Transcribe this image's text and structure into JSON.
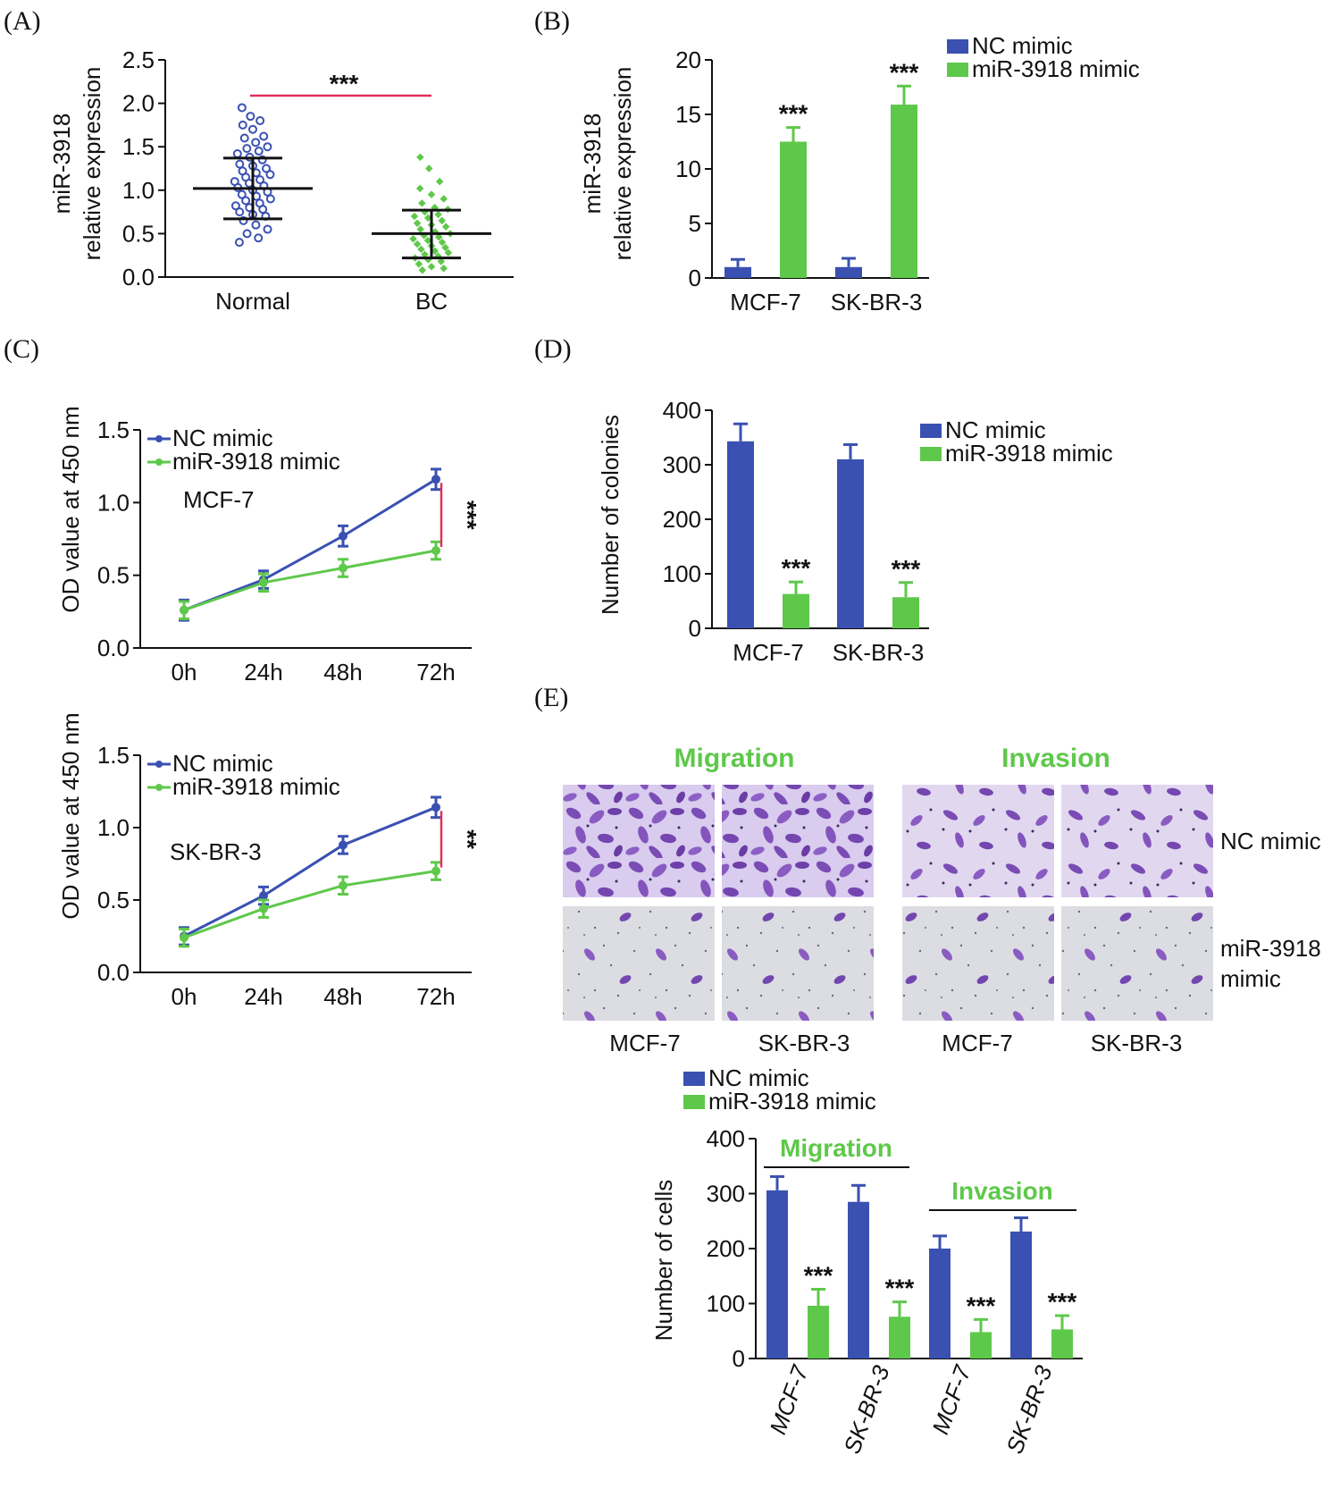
{
  "colors": {
    "nc": "#3a51b2",
    "mir": "#5ec84a",
    "sig": "#e0305a",
    "axis": "#111111",
    "stain": "#7b4fb8",
    "bg_nc": "#d7c9ec",
    "bg_mir": "#dcdcde"
  },
  "legend": {
    "nc": "NC mimic",
    "mir": "miR-3918 mimic"
  },
  "panels": {
    "A": "(A)",
    "B": "(B)",
    "C": "(C)",
    "D": "(D)",
    "E": "(E)"
  },
  "chart_data": [
    {
      "id": "A",
      "type": "scatter",
      "ylabel_line1": "miR-3918",
      "ylabel_line2": "relative expression",
      "categories": [
        "Normal",
        "BC"
      ],
      "ylim": [
        0,
        2.5
      ],
      "yticks": [
        "0.0",
        "0.5",
        "1.0",
        "1.5",
        "2.0",
        "2.5"
      ],
      "summary": [
        {
          "name": "Normal",
          "mean": 1.02,
          "sd_low": 0.67,
          "sd_high": 1.37
        },
        {
          "name": "BC",
          "mean": 0.5,
          "sd_low": 0.22,
          "sd_high": 0.77
        }
      ],
      "points": {
        "Normal": [
          1.95,
          1.85,
          1.8,
          1.75,
          1.7,
          1.62,
          1.6,
          1.55,
          1.5,
          1.48,
          1.45,
          1.42,
          1.38,
          1.35,
          1.3,
          1.28,
          1.25,
          1.22,
          1.2,
          1.18,
          1.15,
          1.12,
          1.1,
          1.08,
          1.05,
          1.03,
          1.0,
          0.98,
          0.95,
          0.93,
          0.9,
          0.88,
          0.85,
          0.82,
          0.8,
          0.78,
          0.75,
          0.72,
          0.7,
          0.65,
          0.6,
          0.55,
          0.5,
          0.45,
          0.4
        ],
        "BC": [
          1.38,
          1.25,
          1.1,
          1.02,
          0.95,
          0.9,
          0.85,
          0.8,
          0.78,
          0.75,
          0.72,
          0.7,
          0.68,
          0.65,
          0.62,
          0.6,
          0.58,
          0.55,
          0.52,
          0.5,
          0.48,
          0.46,
          0.44,
          0.42,
          0.4,
          0.38,
          0.36,
          0.34,
          0.32,
          0.3,
          0.28,
          0.26,
          0.24,
          0.22,
          0.2,
          0.18,
          0.15,
          0.12,
          0.1,
          0.08
        ]
      },
      "significance": "***"
    },
    {
      "id": "B",
      "type": "bar",
      "ylabel_line1": "miR-3918",
      "ylabel_line2": "relative expression",
      "categories": [
        "MCF-7",
        "SK-BR-3"
      ],
      "ylim": [
        0,
        20
      ],
      "yticks": [
        "0",
        "5",
        "10",
        "15",
        "20"
      ],
      "series": [
        {
          "name": "NC mimic",
          "values": [
            1.0,
            1.0
          ],
          "errors": [
            0.7,
            0.8
          ]
        },
        {
          "name": "miR-3918 mimic",
          "values": [
            12.5,
            15.9
          ],
          "errors": [
            1.3,
            1.7
          ]
        }
      ],
      "significance": [
        "***",
        "***"
      ]
    },
    {
      "id": "C1",
      "type": "line",
      "ylabel": "OD value at 450 nm",
      "annotation": "MCF-7",
      "x": [
        "0h",
        "24h",
        "48h",
        "72h"
      ],
      "ylim": [
        0,
        1.5
      ],
      "yticks": [
        "0.0",
        "0.5",
        "1.0",
        "1.5"
      ],
      "series": [
        {
          "name": "NC mimic",
          "values": [
            0.26,
            0.47,
            0.77,
            1.16
          ],
          "errors": [
            0.07,
            0.06,
            0.07,
            0.07
          ]
        },
        {
          "name": "miR-3918 mimic",
          "values": [
            0.26,
            0.45,
            0.55,
            0.67
          ],
          "errors": [
            0.06,
            0.06,
            0.06,
            0.06
          ]
        }
      ],
      "significance": "***"
    },
    {
      "id": "C2",
      "type": "line",
      "ylabel": "OD value at 450 nm",
      "annotation": "SK-BR-3",
      "x": [
        "0h",
        "24h",
        "48h",
        "72h"
      ],
      "ylim": [
        0,
        1.5
      ],
      "yticks": [
        "0.0",
        "0.5",
        "1.0",
        "1.5"
      ],
      "series": [
        {
          "name": "NC mimic",
          "values": [
            0.25,
            0.53,
            0.88,
            1.14
          ],
          "errors": [
            0.06,
            0.06,
            0.06,
            0.07
          ]
        },
        {
          "name": "miR-3918 mimic",
          "values": [
            0.24,
            0.44,
            0.6,
            0.7
          ],
          "errors": [
            0.06,
            0.06,
            0.06,
            0.06
          ]
        }
      ],
      "significance": "**"
    },
    {
      "id": "D",
      "type": "bar",
      "ylabel": "Number of colonies",
      "categories": [
        "MCF-7",
        "SK-BR-3"
      ],
      "ylim": [
        0,
        400
      ],
      "yticks": [
        "0",
        "100",
        "200",
        "300",
        "400"
      ],
      "series": [
        {
          "name": "NC mimic",
          "values": [
            343,
            310
          ],
          "errors": [
            32,
            27
          ]
        },
        {
          "name": "miR-3918 mimic",
          "values": [
            63,
            57
          ],
          "errors": [
            22,
            27
          ]
        }
      ],
      "significance": [
        "***",
        "***"
      ]
    },
    {
      "id": "E",
      "type": "bar",
      "ylabel": "Number of cells",
      "categories": [
        "MCF-7",
        "SK-BR-3",
        "MCF-7",
        "SK-BR-3"
      ],
      "groups": [
        "Migration",
        "Invasion"
      ],
      "ylim": [
        0,
        400
      ],
      "yticks": [
        "0",
        "100",
        "200",
        "300",
        "400"
      ],
      "series": [
        {
          "name": "NC mimic",
          "values": [
            306,
            285,
            200,
            231
          ],
          "errors": [
            25,
            30,
            23,
            25
          ]
        },
        {
          "name": "miR-3918 mimic",
          "values": [
            96,
            76,
            48,
            53
          ],
          "errors": [
            30,
            27,
            23,
            25
          ]
        }
      ],
      "significance": [
        "***",
        "***",
        "***",
        "***"
      ]
    }
  ],
  "micrographs": {
    "migration_title": "Migration",
    "invasion_title": "Invasion",
    "row_nc": "NC mimic",
    "row_mir_line1": "miR-3918",
    "row_mir_line2": "mimic",
    "col_labels": [
      "MCF-7",
      "SK-BR-3",
      "MCF-7",
      "SK-BR-3"
    ]
  }
}
